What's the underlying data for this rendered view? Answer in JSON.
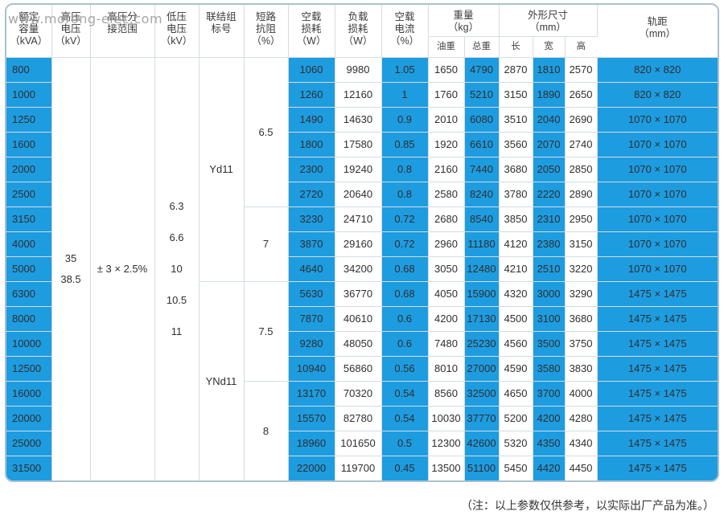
{
  "brand": "www.morong-elec.com",
  "note": "（注：以上参数仅供参考，以实际出厂产品为准。）",
  "headers": {
    "capacity": [
      "额定",
      "容量",
      "（kVA）"
    ],
    "hv": [
      "高压",
      "电压",
      "（kV）"
    ],
    "tap": [
      "高压分",
      "接范围"
    ],
    "lv": [
      "低压",
      "电压",
      "（kV）"
    ],
    "vector": [
      "联结组",
      "标号"
    ],
    "impedance": [
      "短路",
      "抗阻",
      "（%）"
    ],
    "noload": [
      "空载",
      "损耗",
      "（W）"
    ],
    "load": [
      "负载",
      "损耗",
      "（W）"
    ],
    "current": [
      "空载",
      "电流",
      "（%）"
    ],
    "weight": [
      "重量",
      "（kg）"
    ],
    "weight_oil": "油重",
    "weight_total": "总重",
    "dims": [
      "外形尺寸",
      "（mm）"
    ],
    "dim_l": "长",
    "dim_w": "宽",
    "dim_h": "高",
    "gauge": [
      "轨距",
      "（mm）"
    ]
  },
  "hv_values": [
    "35",
    "38.5"
  ],
  "tap_value": "± 3 × 2.5%",
  "lv_values": [
    "6.3",
    "6.6",
    "10",
    "10.5",
    "11"
  ],
  "vector_groups": [
    "Yd11",
    "YNd11"
  ],
  "impedances": [
    "6.5",
    "7",
    "7.5",
    "8"
  ],
  "rows": [
    {
      "cap": "800",
      "p0": "1060",
      "pk": "9980",
      "i0": "1.05",
      "oil": "1650",
      "total": "4790",
      "l": "2870",
      "w": "1810",
      "h": "2570",
      "gauge": "820 × 820"
    },
    {
      "cap": "1000",
      "p0": "1260",
      "pk": "12160",
      "i0": "1",
      "oil": "1760",
      "total": "5210",
      "l": "3150",
      "w": "1890",
      "h": "2650",
      "gauge": "820 × 820"
    },
    {
      "cap": "1250",
      "p0": "1490",
      "pk": "14630",
      "i0": "0.9",
      "oil": "2010",
      "total": "6080",
      "l": "3510",
      "w": "2040",
      "h": "2690",
      "gauge": "1070 × 1070"
    },
    {
      "cap": "1600",
      "p0": "1800",
      "pk": "17580",
      "i0": "0.85",
      "oil": "1920",
      "total": "6610",
      "l": "3560",
      "w": "2070",
      "h": "2740",
      "gauge": "1070 × 1070"
    },
    {
      "cap": "2000",
      "p0": "2300",
      "pk": "19240",
      "i0": "0.8",
      "oil": "2160",
      "total": "7440",
      "l": "3680",
      "w": "2050",
      "h": "2850",
      "gauge": "1070 × 1070"
    },
    {
      "cap": "2500",
      "p0": "2720",
      "pk": "20640",
      "i0": "0.8",
      "oil": "2580",
      "total": "8240",
      "l": "3780",
      "w": "2220",
      "h": "2890",
      "gauge": "1070 × 1070"
    },
    {
      "cap": "3150",
      "p0": "3230",
      "pk": "24710",
      "i0": "0.72",
      "oil": "2680",
      "total": "8540",
      "l": "3850",
      "w": "2310",
      "h": "2950",
      "gauge": "1070 × 1070"
    },
    {
      "cap": "4000",
      "p0": "3870",
      "pk": "29160",
      "i0": "0.72",
      "oil": "2960",
      "total": "11180",
      "l": "4120",
      "w": "2380",
      "h": "3150",
      "gauge": "1070 × 1070"
    },
    {
      "cap": "5000",
      "p0": "4640",
      "pk": "34200",
      "i0": "0.68",
      "oil": "3050",
      "total": "12480",
      "l": "4210",
      "w": "2510",
      "h": "3220",
      "gauge": "1070 × 1070"
    },
    {
      "cap": "6300",
      "p0": "5630",
      "pk": "36770",
      "i0": "0.68",
      "oil": "4050",
      "total": "15900",
      "l": "4320",
      "w": "3000",
      "h": "3290",
      "gauge": "1475 × 1475"
    },
    {
      "cap": "8000",
      "p0": "7870",
      "pk": "40610",
      "i0": "0.6",
      "oil": "4200",
      "total": "17130",
      "l": "4500",
      "w": "3100",
      "h": "3680",
      "gauge": "1475 × 1475"
    },
    {
      "cap": "10000",
      "p0": "9280",
      "pk": "48050",
      "i0": "0.6",
      "oil": "7480",
      "total": "25230",
      "l": "4560",
      "w": "3500",
      "h": "3750",
      "gauge": "1475 × 1475"
    },
    {
      "cap": "12500",
      "p0": "10940",
      "pk": "56860",
      "i0": "0.56",
      "oil": "8010",
      "total": "27000",
      "l": "4590",
      "w": "3580",
      "h": "3830",
      "gauge": "1475 × 1475"
    },
    {
      "cap": "16000",
      "p0": "13170",
      "pk": "70320",
      "i0": "0.54",
      "oil": "8560",
      "total": "32500",
      "l": "4650",
      "w": "3700",
      "h": "4000",
      "gauge": "1475 × 1475"
    },
    {
      "cap": "20000",
      "p0": "15570",
      "pk": "82780",
      "i0": "0.54",
      "oil": "10030",
      "total": "37770",
      "l": "5200",
      "w": "4200",
      "h": "4280",
      "gauge": "1475 × 1475"
    },
    {
      "cap": "25000",
      "p0": "18960",
      "pk": "101650",
      "i0": "0.5",
      "oil": "12300",
      "total": "42600",
      "l": "5320",
      "w": "4350",
      "h": "4340",
      "gauge": "1475 × 1475"
    },
    {
      "cap": "31500",
      "p0": "22000",
      "pk": "119700",
      "i0": "0.45",
      "oil": "13500",
      "total": "51100",
      "l": "5450",
      "w": "4420",
      "h": "4450",
      "gauge": "1475 × 1475"
    }
  ]
}
